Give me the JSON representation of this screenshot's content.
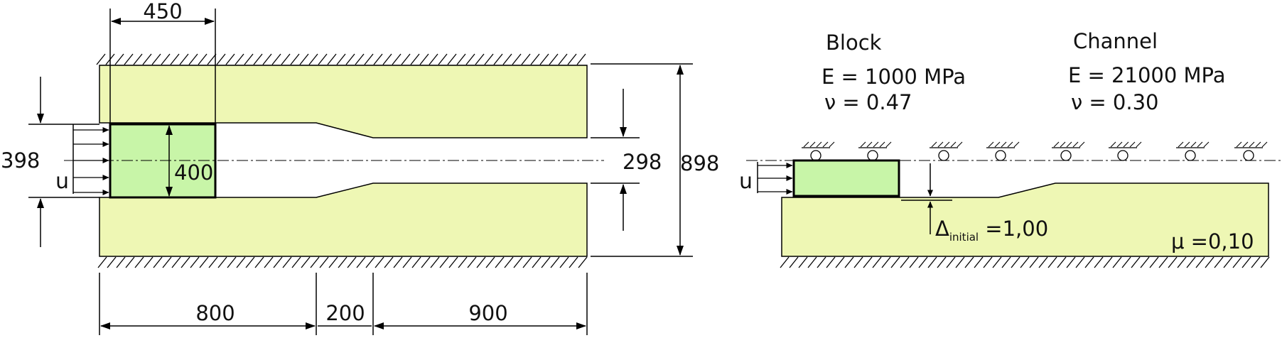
{
  "dimensions": {
    "block_width": "450",
    "block_height": "400",
    "gap_height": "398",
    "outlet_gap": "298",
    "total_height": "898",
    "inlet_length": "800",
    "taper_length": "200",
    "outlet_length": "900"
  },
  "load_label_left": "u",
  "load_label_right": "u",
  "materials": {
    "block": {
      "name": "Block",
      "E": "E = 1000 MPa",
      "nu": "ν = 0.47"
    },
    "channel": {
      "name": "Channel",
      "E": "E = 21000 MPa",
      "nu": "ν = 0.30"
    }
  },
  "initial_gap": {
    "symbol": "Δ",
    "subscript": "initial",
    "value": " =1,00"
  },
  "friction": {
    "symbol": "μ",
    "value": " =0,10"
  },
  "colors": {
    "channel_fill": "#eef7b4",
    "block_fill": "#c8f5a8",
    "line": "#000000"
  }
}
